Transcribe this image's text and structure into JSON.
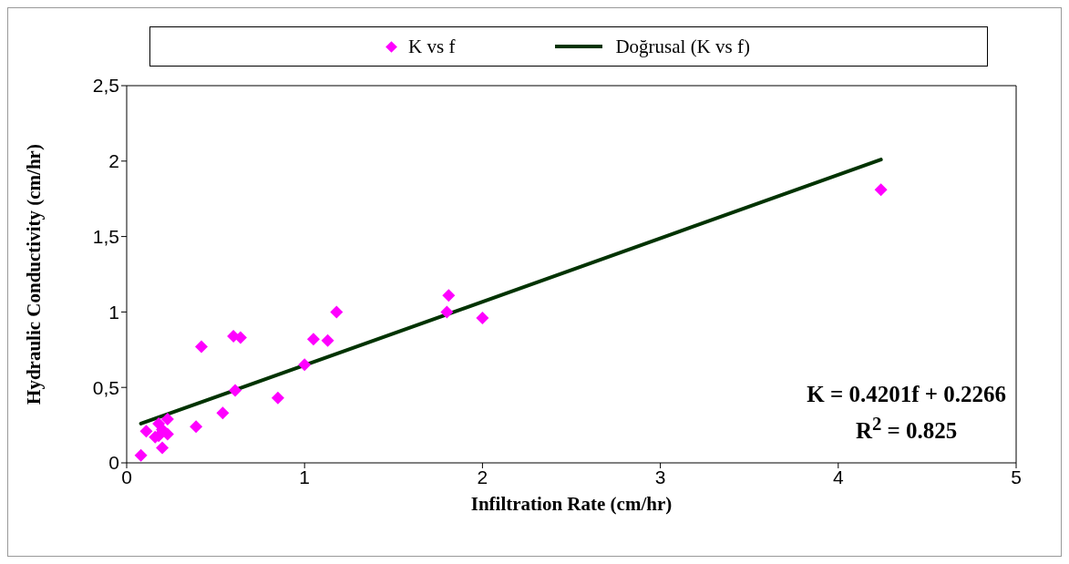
{
  "chart_data": {
    "type": "scatter",
    "xlabel": "Infiltration Rate (cm/hr)",
    "ylabel": "Hydraulic Conductivity (cm/hr)",
    "xlim": [
      0,
      5
    ],
    "xticks": [
      0,
      1,
      2,
      3,
      4,
      5
    ],
    "ylim": [
      0,
      2.5
    ],
    "yticks": [
      0,
      {
        "value": 0.5,
        "label": "0,5"
      },
      1,
      {
        "value": 1.5,
        "label": "1,5"
      },
      2,
      {
        "value": 2.5,
        "label": "2,5"
      }
    ],
    "legend": "top",
    "annotations": [
      "K = 0.4201f + 0.2266",
      "R$^{2}$ = 0.825"
    ],
    "series": [
      {
        "name": "K vs f",
        "marker": "diamond",
        "color": "#ff00ff",
        "x": [
          0.08,
          0.11,
          0.16,
          0.18,
          0.18,
          0.2,
          0.23,
          0.23,
          0.2,
          0.39,
          0.42,
          0.54,
          0.6,
          0.64,
          0.61,
          0.85,
          1.0,
          1.05,
          1.13,
          1.18,
          1.8,
          1.81,
          2.0,
          4.24
        ],
        "values": [
          0.05,
          0.21,
          0.17,
          0.18,
          0.26,
          0.22,
          0.29,
          0.19,
          0.1,
          0.24,
          0.77,
          0.33,
          0.84,
          0.83,
          0.48,
          0.43,
          0.65,
          0.82,
          0.81,
          1.0,
          1.0,
          1.11,
          0.96,
          1.81
        ]
      },
      {
        "name": "Doğrusal (K vs f)",
        "type": "line",
        "marker": "none",
        "line_style": "solid",
        "color": "#003300",
        "x": [
          0.08,
          4.24
        ],
        "values": [
          0.26,
          2.01
        ]
      }
    ]
  }
}
